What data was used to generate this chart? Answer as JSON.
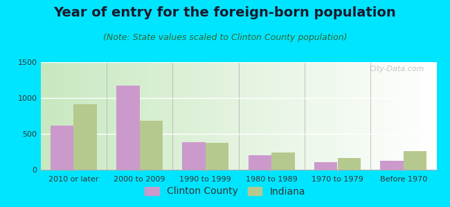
{
  "title": "Year of entry for the foreign-born population",
  "subtitle": "(Note: State values scaled to Clinton County population)",
  "categories": [
    "2010 or later",
    "2000 to 2009",
    "1990 to 1999",
    "1980 to 1989",
    "1970 to 1979",
    "Before 1970"
  ],
  "clinton_county": [
    620,
    1175,
    380,
    205,
    105,
    125
  ],
  "indiana": [
    910,
    680,
    375,
    245,
    160,
    255
  ],
  "clinton_color": "#cc99cc",
  "indiana_color": "#b5c98e",
  "ylim": [
    0,
    1500
  ],
  "yticks": [
    0,
    500,
    1000,
    1500
  ],
  "background_outer": "#00e5ff",
  "title_fontsize": 14,
  "subtitle_fontsize": 9,
  "tick_fontsize": 8,
  "legend_fontsize": 10,
  "bar_width": 0.35,
  "watermark_text": "City-Data.com",
  "legend_clinton": "Clinton County",
  "legend_indiana": "Indiana"
}
